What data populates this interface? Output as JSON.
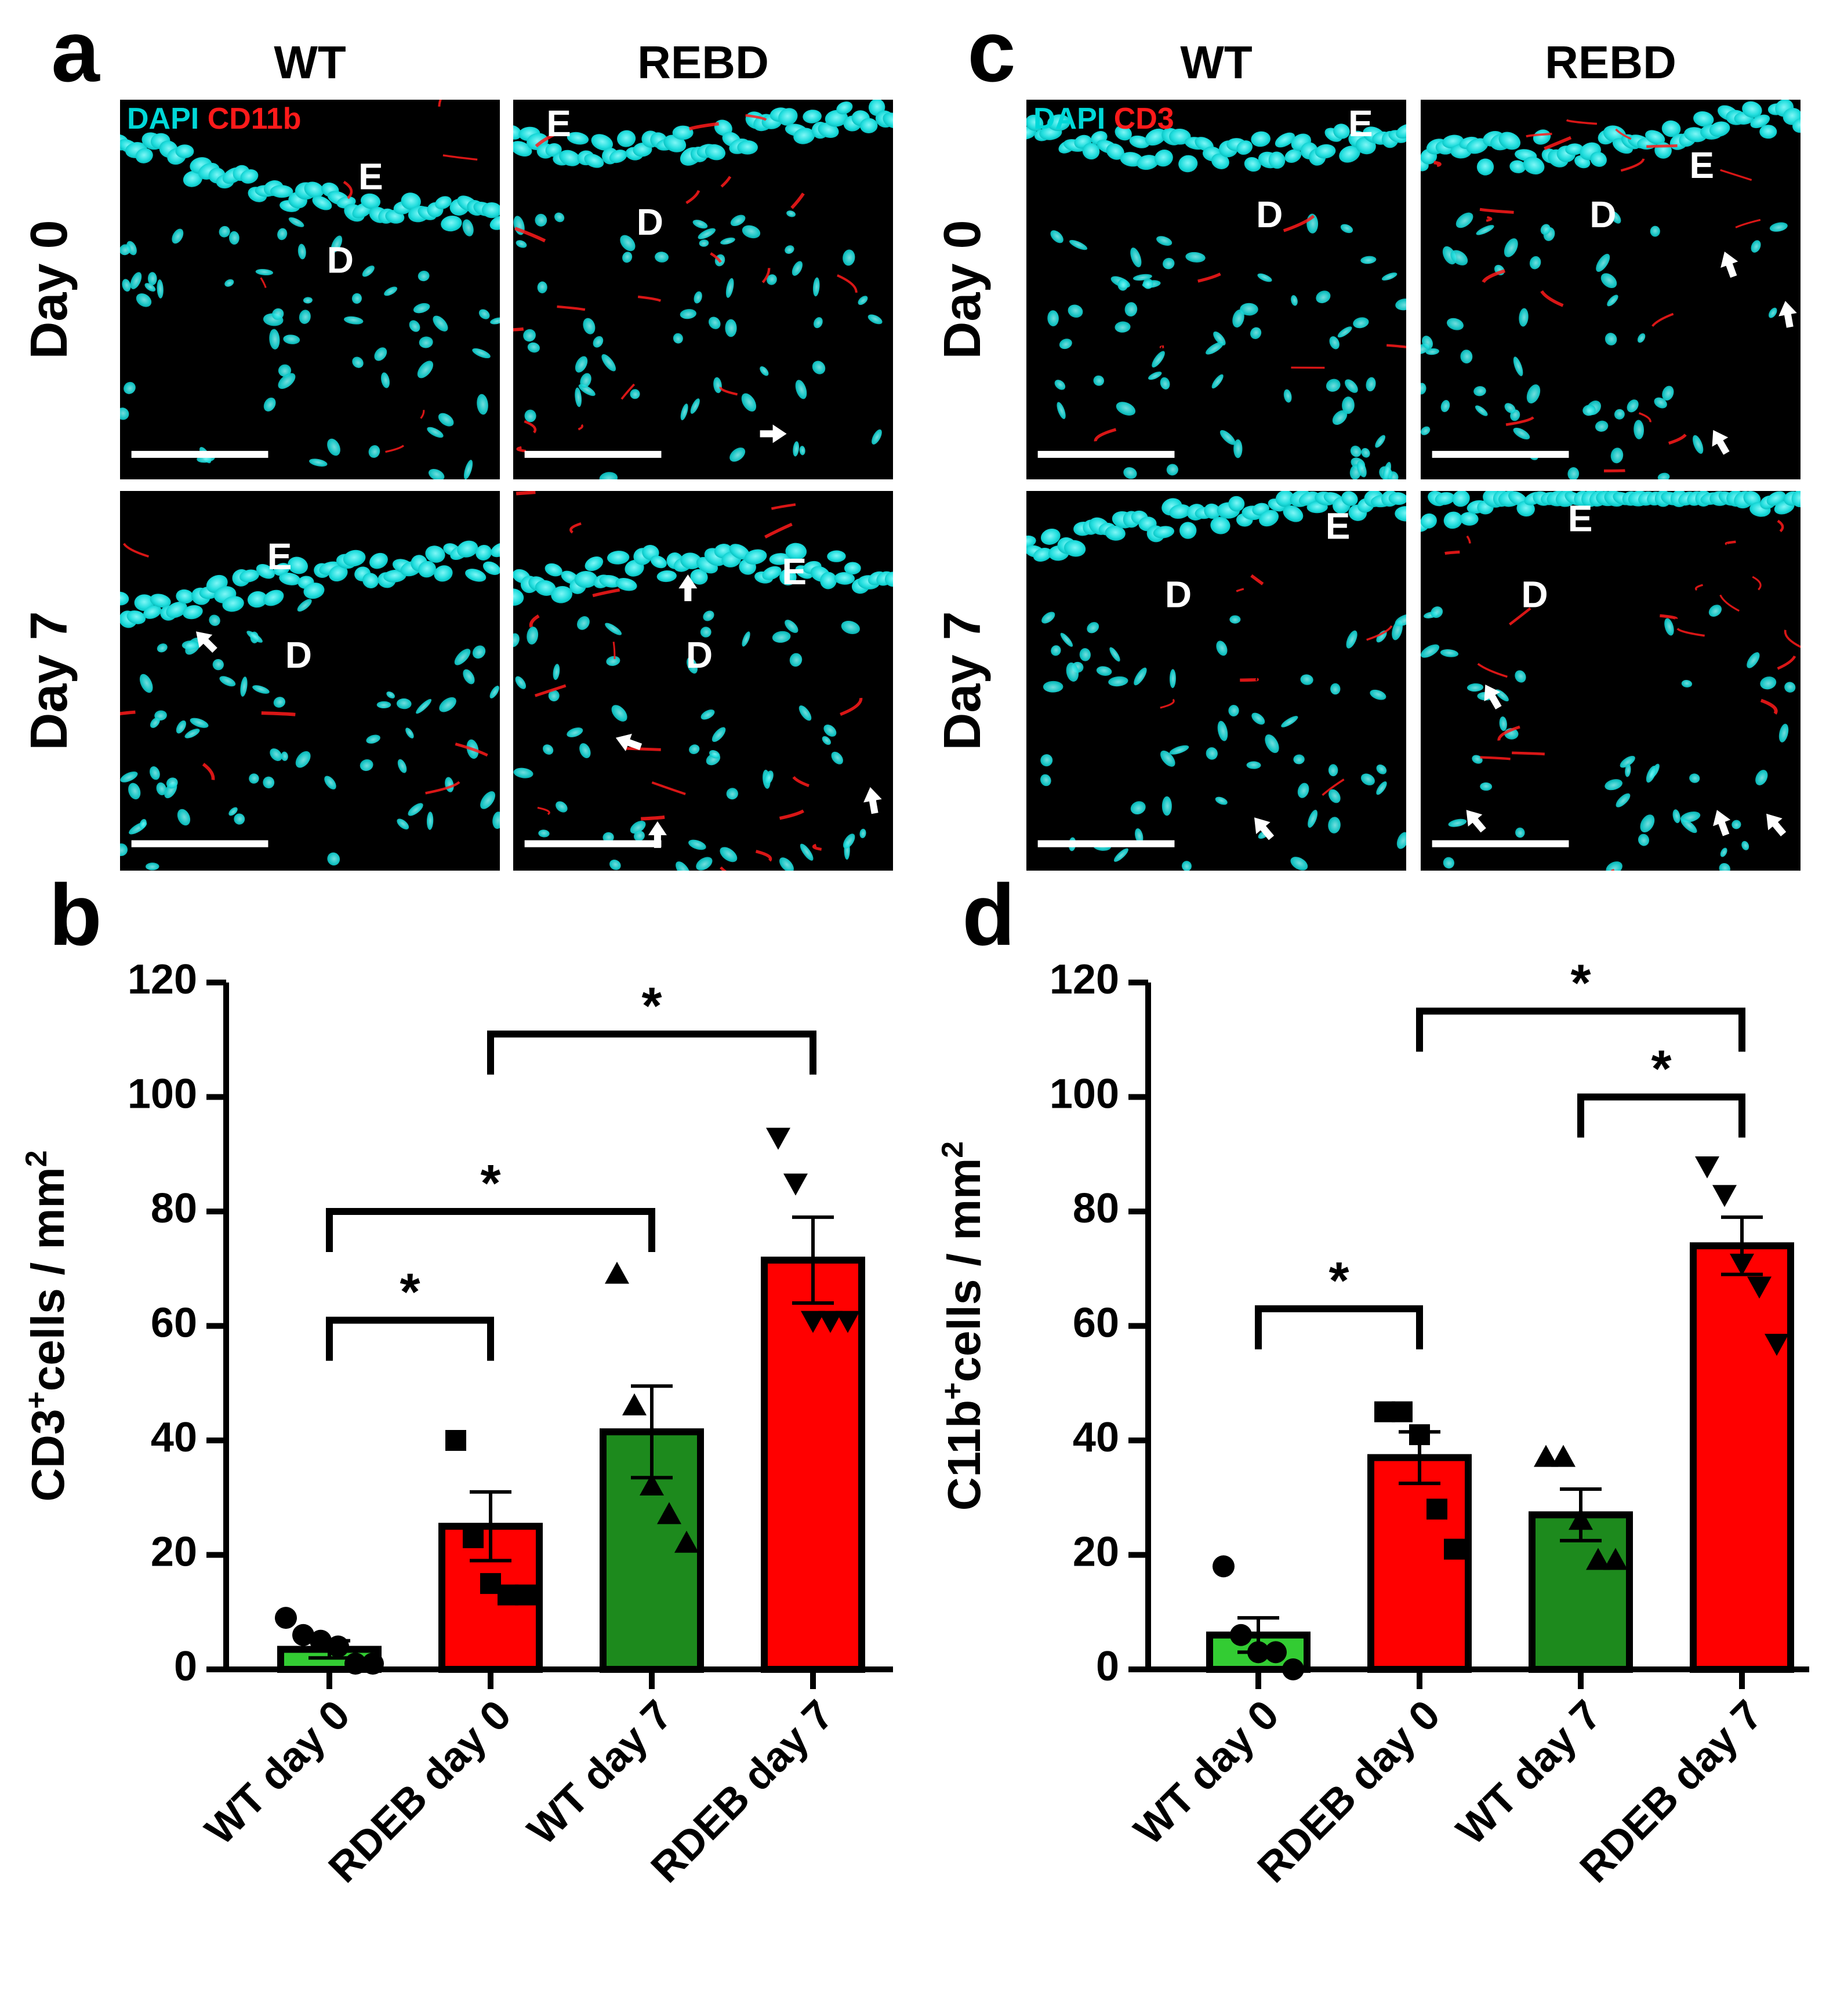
{
  "panels": {
    "a": {
      "letter": "a",
      "col_headers": [
        "WT",
        "REBD"
      ],
      "row_labels": [
        "Day 0",
        "Day 7"
      ],
      "legend": {
        "dapi": "DAPI",
        "marker": "CD11b"
      },
      "tiles": [
        {
          "labels": [
            {
              "t": "E"
            },
            {
              "t": "D"
            }
          ]
        },
        {
          "labels": [
            {
              "t": "E"
            },
            {
              "t": "D"
            }
          ]
        },
        {
          "labels": [
            {
              "t": "E"
            },
            {
              "t": "D"
            }
          ]
        },
        {
          "labels": [
            {
              "t": "E"
            },
            {
              "t": "D"
            }
          ]
        }
      ]
    },
    "c": {
      "letter": "c",
      "col_headers": [
        "WT",
        "REBD"
      ],
      "row_labels": [
        "Day 0",
        "Day 7"
      ],
      "legend": {
        "dapi": "DAPI",
        "marker": "CD3"
      },
      "tiles": [
        {
          "labels": [
            {
              "t": "E"
            },
            {
              "t": "D"
            }
          ]
        },
        {
          "labels": [
            {
              "t": "E"
            },
            {
              "t": "D"
            }
          ]
        },
        {
          "labels": [
            {
              "t": "E"
            },
            {
              "t": "D"
            }
          ]
        },
        {
          "labels": [
            {
              "t": "E"
            },
            {
              "t": "D"
            }
          ]
        }
      ]
    }
  },
  "colors": {
    "dapi": "#00d8d8",
    "marker": "#ff1a1a",
    "green_bar": "#1d8a1d",
    "light_green_bar": "#33cc33",
    "red_bar": "#ff0000"
  },
  "chart_data": [
    {
      "panel": "b",
      "type": "bar",
      "ylabel_main": "CD3",
      "ylabel_sup": "+",
      "ylabel_rest": "cells / mm",
      "ylabel_sup2": "2",
      "ylim": [
        0,
        120
      ],
      "yticks": [
        0,
        20,
        40,
        60,
        80,
        100,
        120
      ],
      "categories": [
        "WT day 0",
        "RDEB day 0",
        "WT day 7",
        "RDEB day 7"
      ],
      "bar_colors": [
        "#33cc33",
        "#ff0000",
        "#1d8a1d",
        "#ff0000"
      ],
      "markers": [
        "circle",
        "square",
        "triangle",
        "triangle-down"
      ],
      "means": [
        3.5,
        25,
        41.5,
        71.5
      ],
      "sem": [
        1.5,
        6,
        8,
        7.5
      ],
      "points": [
        [
          9,
          6,
          5,
          4,
          1,
          1
        ],
        [
          40,
          23,
          15,
          13,
          13
        ],
        [
          69,
          46,
          32,
          27,
          22
        ],
        [
          93,
          85,
          61,
          61,
          61
        ]
      ],
      "significance": [
        {
          "from": 0,
          "to": 1,
          "label": "*",
          "y": 61
        },
        {
          "from": 0,
          "to": 2,
          "label": "*",
          "y": 80
        },
        {
          "from": 1,
          "to": 3,
          "label": "*",
          "y": 111
        }
      ]
    },
    {
      "panel": "d",
      "type": "bar",
      "ylabel_main": "C11b",
      "ylabel_sup": "+",
      "ylabel_rest": "cells / mm",
      "ylabel_sup2": "2",
      "ylim": [
        0,
        120
      ],
      "yticks": [
        0,
        20,
        40,
        60,
        80,
        100,
        120
      ],
      "categories": [
        "WT day 0",
        "RDEB day 0",
        "WT day 7",
        "RDEB day 7"
      ],
      "bar_colors": [
        "#33cc33",
        "#ff0000",
        "#1d8a1d",
        "#ff0000"
      ],
      "markers": [
        "circle",
        "square",
        "triangle",
        "triangle-down"
      ],
      "means": [
        6,
        37,
        27,
        74
      ],
      "sem": [
        3,
        4.5,
        4.5,
        5
      ],
      "points": [
        [
          18,
          6,
          3,
          3,
          0
        ],
        [
          45,
          45,
          41,
          28,
          21
        ],
        [
          37,
          37,
          26,
          19,
          19
        ],
        [
          88,
          83,
          71,
          67,
          57
        ]
      ],
      "significance": [
        {
          "from": 0,
          "to": 1,
          "label": "*",
          "y": 63
        },
        {
          "from": 2,
          "to": 3,
          "label": "*",
          "y": 100
        },
        {
          "from": 1,
          "to": 3,
          "label": "*",
          "y": 115
        }
      ]
    }
  ]
}
